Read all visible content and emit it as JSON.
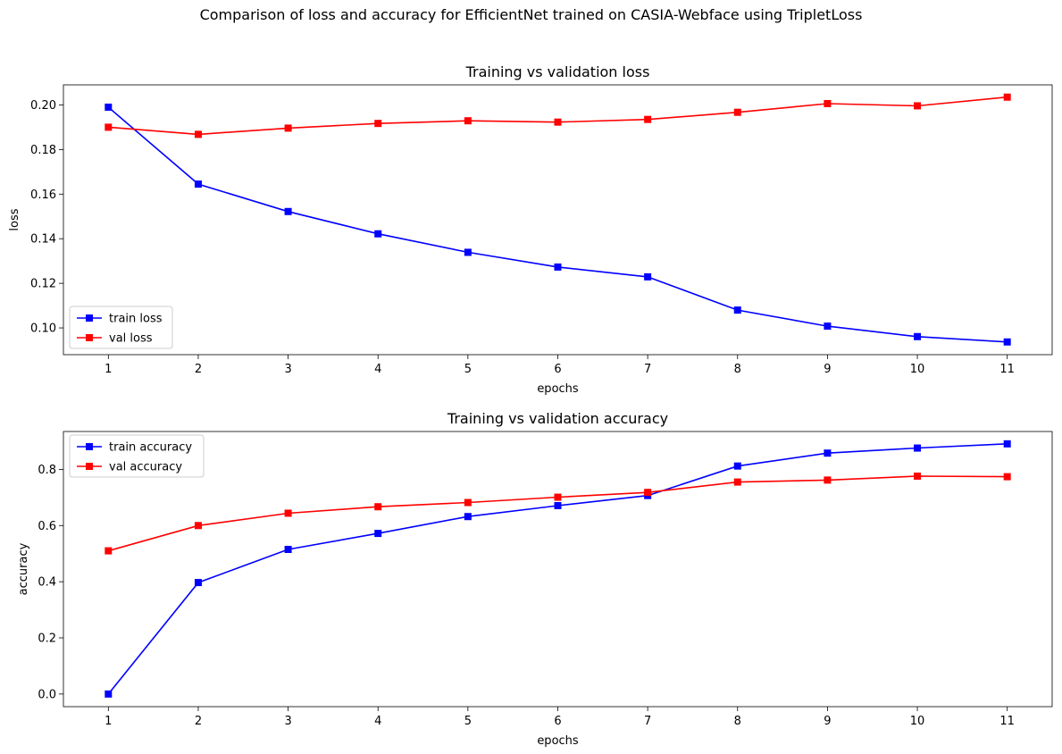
{
  "suptitle": "Comparison of loss and accuracy for EfficientNet trained on CASIA-Webface using TripletLoss",
  "chart_data": [
    {
      "type": "line",
      "title": "Training vs validation loss",
      "xlabel": "epochs",
      "ylabel": "loss",
      "x": [
        1,
        2,
        3,
        4,
        5,
        6,
        7,
        8,
        9,
        10,
        11
      ],
      "xlim": [
        0.5,
        11.5
      ],
      "ylim": [
        0.088,
        0.209
      ],
      "yticks": [
        0.1,
        0.12,
        0.14,
        0.16,
        0.18,
        0.2
      ],
      "ytick_labels": [
        "0.10",
        "0.12",
        "0.14",
        "0.16",
        "0.18",
        "0.20"
      ],
      "grid": false,
      "legend": "lower-left",
      "series": [
        {
          "name": "train loss",
          "color": "#0000ff",
          "marker": "square",
          "values": [
            0.199,
            0.1645,
            0.1522,
            0.1422,
            0.1339,
            0.1273,
            0.1229,
            0.108,
            0.1008,
            0.0961,
            0.0937
          ]
        },
        {
          "name": "val loss",
          "color": "#ff0000",
          "marker": "square",
          "values": [
            0.19,
            0.1868,
            0.1896,
            0.1917,
            0.1929,
            0.1923,
            0.1935,
            0.1967,
            0.2006,
            0.1996,
            0.2035
          ]
        }
      ]
    },
    {
      "type": "line",
      "title": "Training vs validation accuracy",
      "xlabel": "epochs",
      "ylabel": "accuracy",
      "x": [
        1,
        2,
        3,
        4,
        5,
        6,
        7,
        8,
        9,
        10,
        11
      ],
      "xlim": [
        0.5,
        11.5
      ],
      "ylim": [
        -0.045,
        0.935
      ],
      "yticks": [
        0.0,
        0.2,
        0.4,
        0.6,
        0.8
      ],
      "ytick_labels": [
        "0.0",
        "0.2",
        "0.4",
        "0.6",
        "0.8"
      ],
      "grid": false,
      "legend": "upper-left",
      "series": [
        {
          "name": "train accuracy",
          "color": "#0000ff",
          "marker": "square",
          "values": [
            0.0,
            0.397,
            0.515,
            0.572,
            0.632,
            0.671,
            0.707,
            0.812,
            0.858,
            0.876,
            0.891
          ]
        },
        {
          "name": "val accuracy",
          "color": "#ff0000",
          "marker": "square",
          "values": [
            0.51,
            0.6,
            0.644,
            0.667,
            0.682,
            0.701,
            0.718,
            0.755,
            0.762,
            0.776,
            0.774
          ]
        }
      ]
    }
  ]
}
